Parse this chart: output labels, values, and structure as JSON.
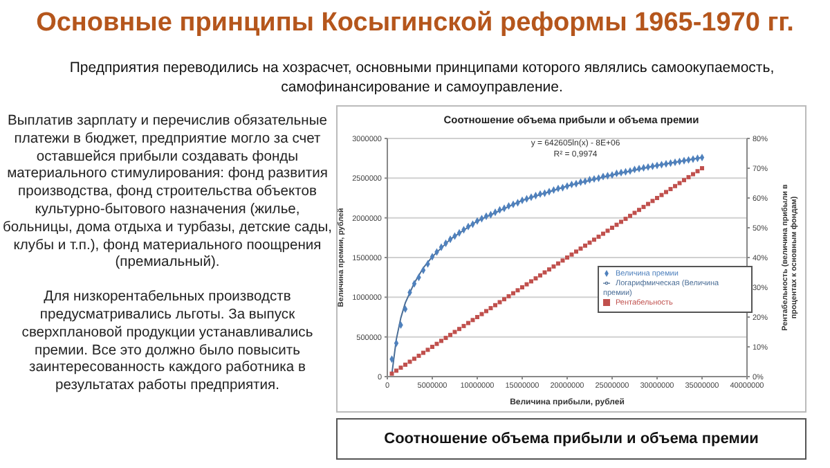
{
  "chart_data": {
    "type": "scatter",
    "title": "Основные принципы Косыгинской реформы 1965-1970 гг.",
    "subtitle": "Предприятия переводились на хозрасчет, основными принципами которого являлись самоокупаемость, самофинансирование и самоуправление.",
    "xlabel": "Величина прибыли, рублей",
    "ylabel": "Величина премии, рублей",
    "y2label": "Рентабельность (величина прибыли в процентах к основным фондам)",
    "annotations": [
      "Соотношение объема прибыли и объема премии",
      "y = 642605ln(x) - 8E+06",
      "R² = 0,9974",
      "Выплатив зарплату и перечислив обязательные платежи в бюджет, предприятие могло за счет оставшейся прибыли создавать фонды материального стимулирования: фонд развития производства, фонд строительства объектов культурно-бытового назначения (жилье, больницы, дома отдыха и турбазы, детские сады, клубы и т.п.), фонд материального поощрения (премиальный).",
      "Для низкорентабельных производств предусматривались льготы. За выпуск сверхплановой продукции устанавливались премии. Все это должно было повысить заинтересованность каждого работника в результатах работы предприятия.",
      "Соотношение объема прибыли и объема премии"
    ],
    "x": [
      500000,
      1000000,
      1500000,
      2000000,
      2500000,
      3000000,
      3500000,
      4000000,
      4500000,
      5000000,
      5500000,
      6000000,
      6500000,
      7000000,
      7500000,
      8000000,
      8500000,
      9000000,
      9500000,
      10000000,
      10500000,
      11000000,
      11500000,
      12000000,
      12500000,
      13000000,
      13500000,
      14000000,
      14500000,
      15000000,
      15500000,
      16000000,
      16500000,
      17000000,
      17500000,
      18000000,
      18500000,
      19000000,
      19500000,
      20000000,
      20500000,
      21000000,
      21500000,
      22000000,
      22500000,
      23000000,
      23500000,
      24000000,
      24500000,
      25000000,
      25500000,
      26000000,
      26500000,
      27000000,
      27500000,
      28000000,
      28500000,
      29000000,
      29500000,
      30000000,
      30500000,
      31000000,
      31500000,
      32000000,
      32500000,
      33000000,
      33500000,
      34000000,
      34500000,
      35000000
    ],
    "series": [
      {
        "name": "Величина премии",
        "marker": "diamond",
        "color": "#4f81bd",
        "values": [
          220000,
          420000,
          650000,
          850000,
          1060000,
          1170000,
          1250000,
          1340000,
          1420000,
          1510000,
          1570000,
          1630000,
          1680000,
          1730000,
          1770000,
          1810000,
          1850000,
          1890000,
          1920000,
          1960000,
          1990000,
          2020000,
          2040000,
          2070000,
          2100000,
          2120000,
          2150000,
          2170000,
          2190000,
          2220000,
          2240000,
          2260000,
          2280000,
          2300000,
          2310000,
          2330000,
          2350000,
          2370000,
          2380000,
          2400000,
          2420000,
          2430000,
          2450000,
          2460000,
          2480000,
          2490000,
          2500000,
          2520000,
          2530000,
          2540000,
          2560000,
          2570000,
          2580000,
          2590000,
          2610000,
          2620000,
          2630000,
          2640000,
          2650000,
          2660000,
          2670000,
          2680000,
          2690000,
          2700000,
          2710000,
          2720000,
          2730000,
          2740000,
          2750000,
          2760000
        ]
      },
      {
        "name": "Рентабельность",
        "marker": "square",
        "color": "#c0504d",
        "axis": "y2",
        "values": [
          1,
          2,
          3,
          4,
          5,
          6,
          7,
          8,
          9,
          10,
          11,
          12,
          13,
          14,
          15,
          16,
          17,
          18,
          19,
          20,
          21,
          22,
          23,
          24,
          25,
          26,
          27,
          28,
          29,
          30,
          31,
          32,
          33,
          34,
          35,
          36,
          37,
          38,
          39,
          40,
          41,
          42,
          43,
          44,
          45,
          46,
          47,
          48,
          49,
          50,
          51,
          52,
          53,
          54,
          55,
          56,
          57,
          58,
          59,
          60,
          61,
          62,
          63,
          64,
          65,
          66,
          67,
          68,
          69,
          70
        ]
      },
      {
        "name": "Логарифмическая (Величина премии)",
        "type": "line",
        "marker": "none",
        "color": "#4a6d96",
        "x": [
          500000,
          1000000,
          1500000,
          2000000,
          3000000,
          4000000,
          5000000,
          7000000,
          10000000,
          15000000,
          20000000,
          25000000,
          30000000,
          35000000
        ],
        "values": [
          30000,
          470000,
          740000,
          930000,
          1180000,
          1370000,
          1510000,
          1730000,
          1960000,
          2220000,
          2400000,
          2540000,
          2660000,
          2760000
        ]
      }
    ],
    "xlim": [
      0,
      40000000
    ],
    "xticks": [
      0,
      5000000,
      10000000,
      15000000,
      20000000,
      25000000,
      30000000,
      35000000,
      40000000
    ],
    "ylim": [
      0,
      3000000
    ],
    "yticks": [
      0,
      500000,
      1000000,
      1500000,
      2000000,
      2500000,
      3000000
    ],
    "y2lim": [
      0,
      80
    ],
    "y2ticks": [
      {
        "value": 0,
        "label": "0%"
      },
      {
        "value": 10,
        "label": "10%"
      },
      {
        "value": 20,
        "label": "20%"
      },
      {
        "value": 30,
        "label": "30%"
      },
      {
        "value": 40,
        "label": "40%"
      },
      {
        "value": 50,
        "label": "50%"
      },
      {
        "value": 60,
        "label": "60%"
      },
      {
        "value": 70,
        "label": "70%"
      },
      {
        "value": 80,
        "label": "80%"
      }
    ],
    "grid": "y",
    "legend": "right"
  }
}
